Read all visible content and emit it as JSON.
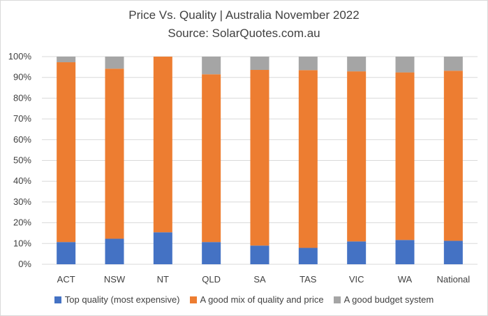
{
  "chart_data": {
    "type": "bar",
    "stacked": true,
    "title": "Price Vs. Quality | Australia November 2022",
    "subtitle": "Source: SolarQuotes.com.au",
    "categories": [
      "ACT",
      "NSW",
      "NT",
      "QLD",
      "SA",
      "TAS",
      "VIC",
      "WA",
      "National"
    ],
    "series": [
      {
        "name": "Top quality (most expensive)",
        "color": "#4472c4",
        "values": [
          10.7,
          12.3,
          15.4,
          10.7,
          9.0,
          7.9,
          11.0,
          11.7,
          11.3
        ]
      },
      {
        "name": "A good mix of quality and price",
        "color": "#ed7d31",
        "values": [
          86.6,
          81.9,
          84.6,
          80.8,
          84.6,
          85.6,
          81.9,
          80.7,
          81.9
        ]
      },
      {
        "name": "A good budget system",
        "color": "#a5a5a5",
        "values": [
          2.7,
          5.8,
          0.0,
          8.5,
          6.4,
          6.5,
          7.1,
          7.6,
          6.8
        ]
      }
    ],
    "yticks": [
      "0%",
      "10%",
      "20%",
      "30%",
      "40%",
      "50%",
      "60%",
      "70%",
      "80%",
      "90%",
      "100%"
    ],
    "ylim": [
      0,
      100
    ],
    "grid": true,
    "legend_position": "bottom"
  }
}
